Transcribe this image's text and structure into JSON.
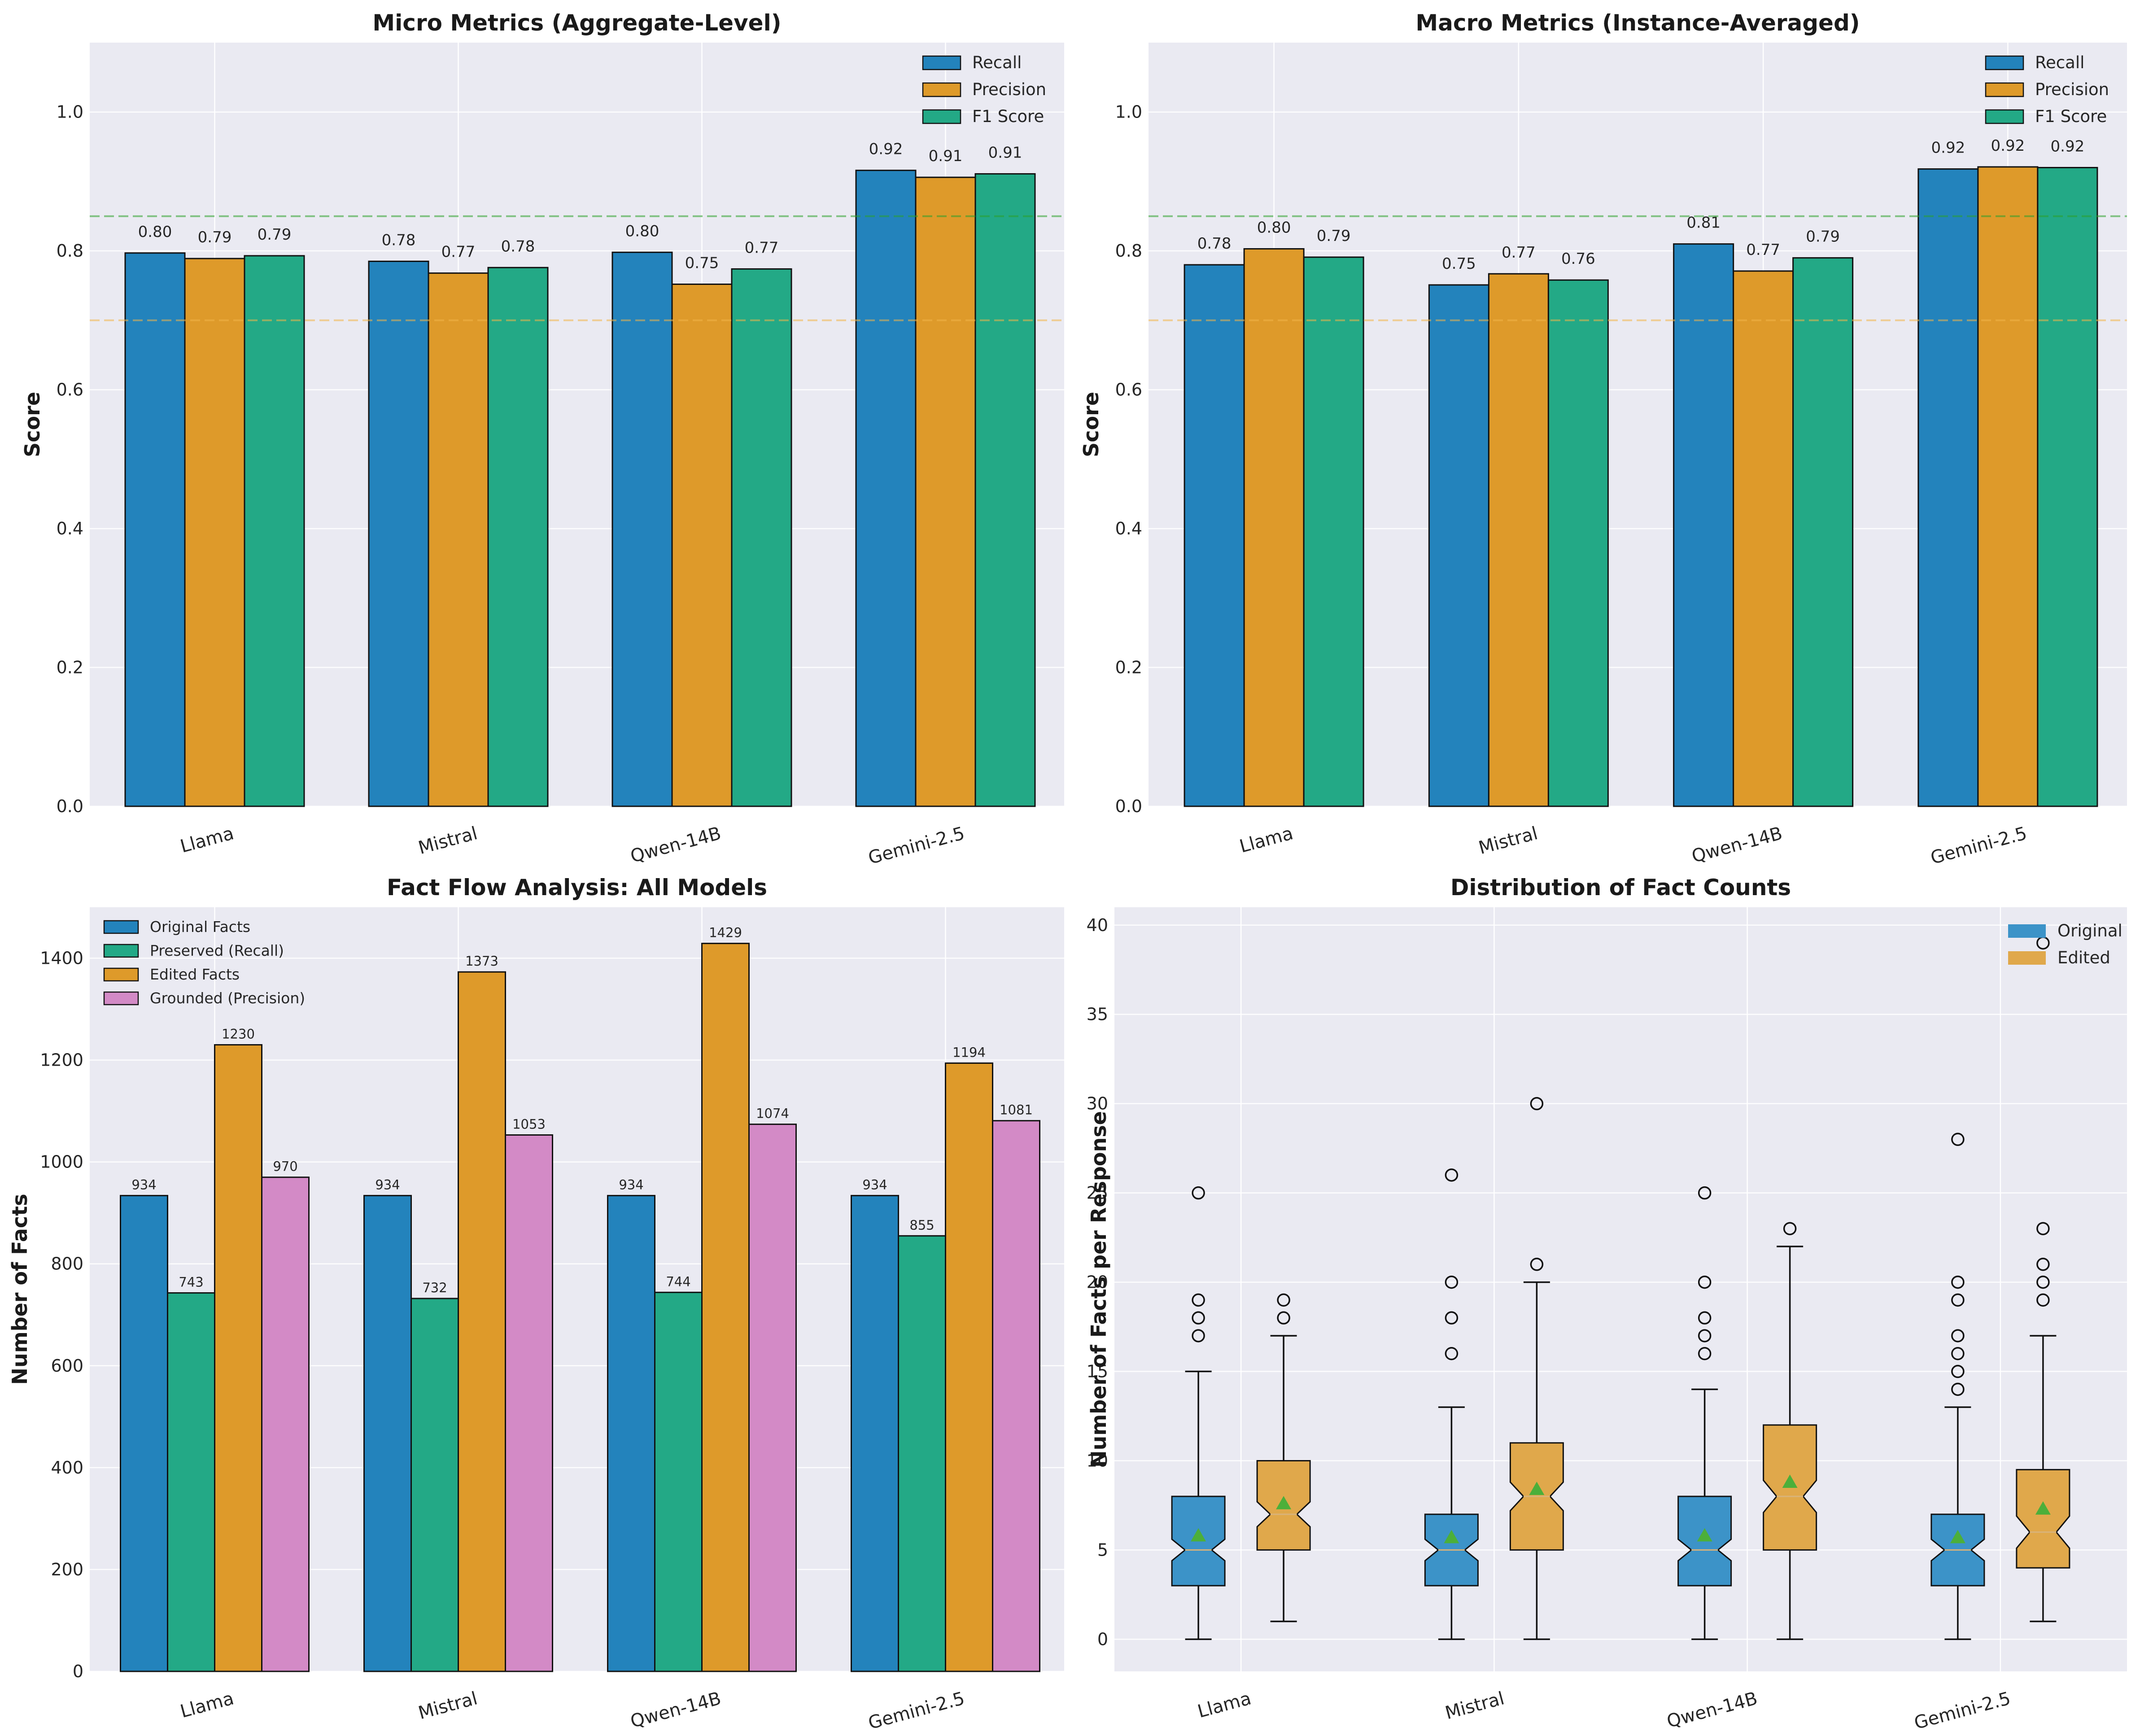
{
  "chart_data": [
    {
      "type": "bar",
      "title": "Micro Metrics (Aggregate-Level)",
      "ylabel": "Score",
      "xlabel": "",
      "categories": [
        "Llama",
        "Mistral",
        "Qwen-14B",
        "Gemini-2.5"
      ],
      "ylim": [
        0,
        1.1
      ],
      "yticks": [
        0.0,
        0.2,
        0.4,
        0.6,
        0.8,
        1.0
      ],
      "ytick_labels": [
        "0.0",
        "0.2",
        "0.4",
        "0.6",
        "0.8",
        "1.0"
      ],
      "reference_lines": [
        {
          "value": 0.85,
          "color": "#2ca02c"
        },
        {
          "value": 0.7,
          "color": "#f0b449"
        }
      ],
      "series": [
        {
          "name": "Recall",
          "color": "#2383bc",
          "values": [
            0.797,
            0.785,
            0.798,
            0.916
          ],
          "labels": [
            "0.80",
            "0.78",
            "0.80",
            "0.92"
          ]
        },
        {
          "name": "Precision",
          "color": "#de9a2a",
          "values": [
            0.789,
            0.768,
            0.752,
            0.906
          ],
          "labels": [
            "0.79",
            "0.77",
            "0.75",
            "0.91"
          ]
        },
        {
          "name": "F1 Score",
          "color": "#23a986",
          "values": [
            0.793,
            0.776,
            0.774,
            0.911
          ],
          "labels": [
            "0.79",
            "0.78",
            "0.77",
            "0.91"
          ]
        }
      ],
      "legend": "top-right"
    },
    {
      "type": "bar",
      "title": "Macro Metrics (Instance-Averaged)",
      "ylabel": "Score",
      "xlabel": "",
      "categories": [
        "Llama",
        "Mistral",
        "Qwen-14B",
        "Gemini-2.5"
      ],
      "ylim": [
        0,
        1.1
      ],
      "yticks": [
        0.0,
        0.2,
        0.4,
        0.6,
        0.8,
        1.0
      ],
      "ytick_labels": [
        "0.0",
        "0.2",
        "0.4",
        "0.6",
        "0.8",
        "1.0"
      ],
      "reference_lines": [
        {
          "value": 0.85,
          "color": "#2ca02c"
        },
        {
          "value": 0.7,
          "color": "#f0b449"
        }
      ],
      "series": [
        {
          "name": "Recall",
          "color": "#2383bc",
          "values": [
            0.78,
            0.751,
            0.81,
            0.918
          ],
          "labels": [
            "0.78",
            "0.75",
            "0.81",
            "0.92"
          ]
        },
        {
          "name": "Precision",
          "color": "#de9a2a",
          "values": [
            0.803,
            0.767,
            0.771,
            0.921
          ],
          "labels": [
            "0.80",
            "0.77",
            "0.77",
            "0.92"
          ]
        },
        {
          "name": "F1 Score",
          "color": "#23a986",
          "values": [
            0.791,
            0.758,
            0.79,
            0.92
          ],
          "labels": [
            "0.79",
            "0.76",
            "0.79",
            "0.92"
          ]
        }
      ],
      "legend": "top-right"
    },
    {
      "type": "bar",
      "title": "Fact Flow Analysis: All Models",
      "ylabel": "Number of Facts",
      "xlabel": "",
      "categories": [
        "Llama",
        "Mistral",
        "Qwen-14B",
        "Gemini-2.5"
      ],
      "ylim": [
        0,
        1500
      ],
      "yticks": [
        0,
        200,
        400,
        600,
        800,
        1000,
        1200,
        1400
      ],
      "ytick_labels": [
        "0",
        "200",
        "400",
        "600",
        "800",
        "1000",
        "1200",
        "1400"
      ],
      "series": [
        {
          "name": "Original Facts",
          "color": "#2383bc",
          "values": [
            934,
            934,
            934,
            934
          ]
        },
        {
          "name": "Preserved (Recall)",
          "color": "#23a986",
          "values": [
            743,
            732,
            744,
            855
          ]
        },
        {
          "name": "Edited Facts",
          "color": "#de9a2a",
          "values": [
            1230,
            1373,
            1429,
            1194
          ]
        },
        {
          "name": "Grounded (Precision)",
          "color": "#d38ac6",
          "values": [
            970,
            1053,
            1074,
            1081
          ]
        }
      ],
      "legend": "top-left"
    },
    {
      "type": "box",
      "title": "Distribution of Fact Counts",
      "ylabel": "Number of Facts per Response",
      "xlabel": "",
      "categories": [
        "Llama",
        "Mistral",
        "Qwen-14B",
        "Gemini-2.5"
      ],
      "ylim": [
        -1.8,
        41
      ],
      "yticks": [
        0,
        5,
        10,
        15,
        20,
        25,
        30,
        35,
        40
      ],
      "ytick_labels": [
        "0",
        "5",
        "10",
        "15",
        "20",
        "25",
        "30",
        "35",
        "40"
      ],
      "legend": "top-right",
      "series": [
        {
          "name": "Original",
          "color": "#3c93c8",
          "boxes": [
            {
              "min": 0,
              "q1": 3,
              "median": 5,
              "q3": 8,
              "max": 15,
              "mean": 5.8,
              "notch": [
                4.4,
                5.6
              ],
              "outliers": [
                17,
                18,
                19,
                25
              ]
            },
            {
              "min": 0,
              "q1": 3,
              "median": 5,
              "q3": 7,
              "max": 13,
              "mean": 5.7,
              "notch": [
                4.4,
                5.6
              ],
              "outliers": [
                16,
                18,
                20,
                26
              ]
            },
            {
              "min": 0,
              "q1": 3,
              "median": 5,
              "q3": 8,
              "max": 14,
              "mean": 5.8,
              "notch": [
                4.4,
                5.6
              ],
              "outliers": [
                16,
                17,
                18,
                20,
                25
              ]
            },
            {
              "min": 0,
              "q1": 3,
              "median": 5,
              "q3": 7,
              "max": 13,
              "mean": 5.7,
              "notch": [
                4.4,
                5.6
              ],
              "outliers": [
                14,
                15,
                16,
                17,
                19,
                20,
                28
              ]
            }
          ]
        },
        {
          "name": "Edited",
          "color": "#e0a84b",
          "boxes": [
            {
              "min": 1,
              "q1": 5,
              "median": 7,
              "q3": 10,
              "max": 17,
              "mean": 7.6,
              "notch": [
                6.3,
                7.7
              ],
              "outliers": [
                18,
                19
              ]
            },
            {
              "min": 0,
              "q1": 5,
              "median": 8,
              "q3": 11,
              "max": 20,
              "mean": 8.4,
              "notch": [
                7.2,
                8.8
              ],
              "outliers": [
                21,
                30
              ]
            },
            {
              "min": 0,
              "q1": 5,
              "median": 8,
              "q3": 12,
              "max": 22,
              "mean": 8.8,
              "notch": [
                7.1,
                8.9
              ],
              "outliers": [
                23
              ]
            },
            {
              "min": 1,
              "q1": 4,
              "median": 6,
              "q3": 9.5,
              "max": 17,
              "mean": 7.3,
              "notch": [
                5.1,
                6.9
              ],
              "outliers": [
                19,
                20,
                21,
                23,
                39
              ]
            }
          ]
        }
      ]
    }
  ]
}
